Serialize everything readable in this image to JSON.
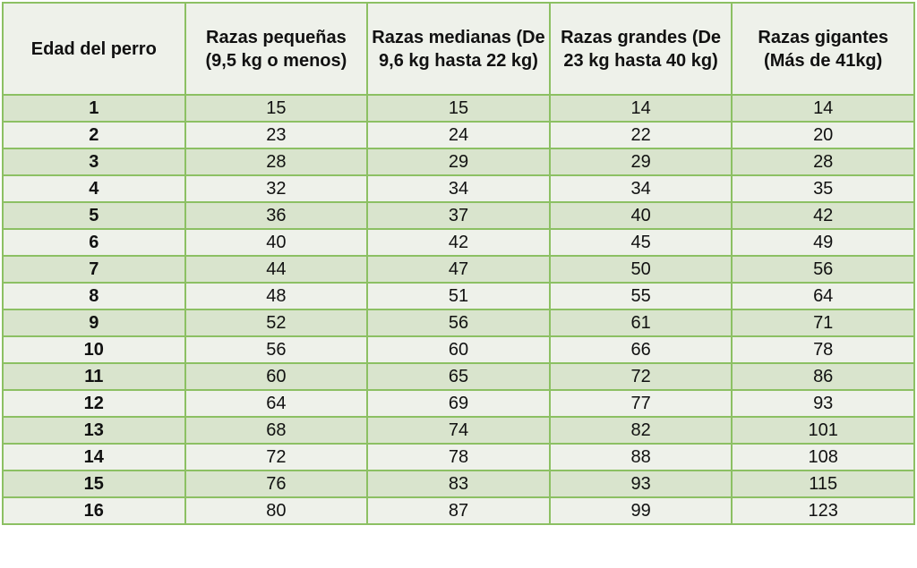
{
  "chart_data": {
    "type": "table",
    "columns": [
      "Edad del perro",
      "Razas pequeñas (9,5 kg o menos)",
      "Razas medianas (De 9,6 kg hasta 22 kg)",
      "Razas grandes (De 23 kg hasta 40 kg)",
      "Razas gigantes (Más de 41kg)"
    ],
    "rows": [
      [
        "1",
        "15",
        "15",
        "14",
        "14"
      ],
      [
        "2",
        "23",
        "24",
        "22",
        "20"
      ],
      [
        "3",
        "28",
        "29",
        "29",
        "28"
      ],
      [
        "4",
        "32",
        "34",
        "34",
        "35"
      ],
      [
        "5",
        "36",
        "37",
        "40",
        "42"
      ],
      [
        "6",
        "40",
        "42",
        "45",
        "49"
      ],
      [
        "7",
        "44",
        "47",
        "50",
        "56"
      ],
      [
        "8",
        "48",
        "51",
        "55",
        "64"
      ],
      [
        "9",
        "52",
        "56",
        "61",
        "71"
      ],
      [
        "10",
        "56",
        "60",
        "66",
        "78"
      ],
      [
        "11",
        "60",
        "65",
        "72",
        "86"
      ],
      [
        "12",
        "64",
        "69",
        "77",
        "93"
      ],
      [
        "13",
        "68",
        "74",
        "82",
        "101"
      ],
      [
        "14",
        "72",
        "78",
        "88",
        "108"
      ],
      [
        "15",
        "76",
        "83",
        "93",
        "115"
      ],
      [
        "16",
        "80",
        "87",
        "99",
        "123"
      ]
    ],
    "colors": {
      "border": "#8cc063",
      "header_bg": "#eef1ea",
      "band_bg": "#d9e4cd"
    }
  }
}
